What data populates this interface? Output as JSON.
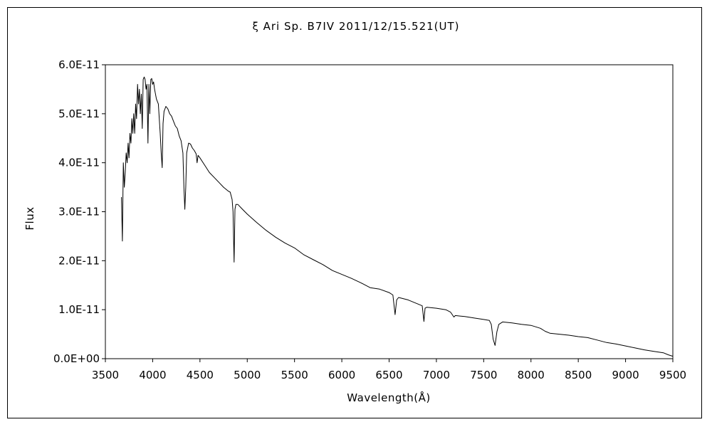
{
  "chart_data": {
    "type": "line",
    "title": "ξ  Ari    Sp. B7IV    2011/12/15.521(UT)",
    "xlabel": "Wavelength(Å)",
    "ylabel": "Flux",
    "xlim": [
      3500,
      9500
    ],
    "ylim": [
      0,
      6e-11
    ],
    "x_ticks": [
      "3500",
      "4000",
      "4500",
      "5000",
      "5500",
      "6000",
      "6500",
      "7000",
      "7500",
      "8000",
      "8500",
      "9000",
      "9500"
    ],
    "y_ticks": [
      "0.0E+00",
      "1.0E-11",
      "2.0E-11",
      "3.0E-11",
      "4.0E-11",
      "5.0E-11",
      "6.0E-11"
    ],
    "grid": false,
    "legend": "none",
    "colors": {
      "line": "#000000",
      "axes": "#000000",
      "background": "#ffffff"
    },
    "series": [
      {
        "x": [
          3670,
          3680,
          3690,
          3700,
          3710,
          3720,
          3730,
          3740,
          3750,
          3760,
          3770,
          3780,
          3790,
          3800,
          3810,
          3820,
          3830,
          3840,
          3850,
          3860,
          3870,
          3880,
          3890,
          3900,
          3910,
          3920,
          3930,
          3940,
          3950,
          3960,
          3970,
          3980,
          3990,
          4000,
          4010,
          4020,
          4030,
          4040,
          4060,
          4080,
          4090,
          4101,
          4110,
          4120,
          4140,
          4160,
          4180,
          4200,
          4220,
          4240,
          4260,
          4280,
          4300,
          4320,
          4330,
          4340,
          4350,
          4360,
          4380,
          4400,
          4420,
          4440,
          4460,
          4470,
          4480,
          4500,
          4550,
          4600,
          4650,
          4700,
          4750,
          4800,
          4820,
          4840,
          4850,
          4855,
          4861,
          4866,
          4870,
          4880,
          4900,
          4950,
          5000,
          5100,
          5200,
          5300,
          5400,
          5500,
          5600,
          5700,
          5800,
          5900,
          6000,
          6100,
          6200,
          6300,
          6400,
          6500,
          6540,
          6563,
          6580,
          6600,
          6700,
          6800,
          6850,
          6868,
          6880,
          6900,
          7000,
          7100,
          7150,
          7185,
          7200,
          7250,
          7300,
          7400,
          7500,
          7560,
          7580,
          7600,
          7620,
          7640,
          7660,
          7700,
          7800,
          7900,
          8000,
          8100,
          8150,
          8200,
          8300,
          8400,
          8500,
          8600,
          8700,
          8800,
          8900,
          9000,
          9100,
          9200,
          9300,
          9400,
          9450,
          9500
        ],
        "y": [
          3.3e-11,
          2.4e-11,
          4e-11,
          3.5e-11,
          3.8e-11,
          4.2e-11,
          4e-11,
          4.4e-11,
          4.1e-11,
          4.6e-11,
          4.4e-11,
          4.9e-11,
          4.6e-11,
          5e-11,
          4.6e-11,
          5.2e-11,
          4.9e-11,
          5.6e-11,
          5.2e-11,
          5.5e-11,
          5e-11,
          5.4e-11,
          4.7e-11,
          5.7e-11,
          5.75e-11,
          5.7e-11,
          5.5e-11,
          5.6e-11,
          4.4e-11,
          5.6e-11,
          5e-11,
          5.7e-11,
          5.72e-11,
          5.6e-11,
          5.65e-11,
          5.5e-11,
          5.4e-11,
          5.3e-11,
          5.2e-11,
          4.6e-11,
          4.2e-11,
          3.9e-11,
          4.8e-11,
          5.05e-11,
          5.15e-11,
          5.1e-11,
          5e-11,
          4.95e-11,
          4.85e-11,
          4.75e-11,
          4.7e-11,
          4.55e-11,
          4.45e-11,
          4.2e-11,
          3.5e-11,
          3.05e-11,
          3.5e-11,
          4.2e-11,
          4.4e-11,
          4.38e-11,
          4.3e-11,
          4.25e-11,
          4.18e-11,
          4e-11,
          4.15e-11,
          4.1e-11,
          3.95e-11,
          3.8e-11,
          3.7e-11,
          3.6e-11,
          3.5e-11,
          3.42e-11,
          3.4e-11,
          3.25e-11,
          3e-11,
          2.5e-11,
          1.97e-11,
          2.6e-11,
          3.05e-11,
          3.15e-11,
          3.15e-11,
          3.05e-11,
          2.95e-11,
          2.78e-11,
          2.62e-11,
          2.48e-11,
          2.36e-11,
          2.26e-11,
          2.12e-11,
          2.02e-11,
          1.92e-11,
          1.8e-11,
          1.72e-11,
          1.64e-11,
          1.55e-11,
          1.45e-11,
          1.42e-11,
          1.35e-11,
          1.3e-11,
          9e-12,
          1.2e-11,
          1.25e-11,
          1.2e-11,
          1.12e-11,
          1.08e-11,
          7.6e-12,
          1.03e-11,
          1.05e-11,
          1.03e-11,
          1e-11,
          9.5e-12,
          8.5e-12,
          8.8e-12,
          8.7e-12,
          8.6e-12,
          8.3e-12,
          8e-12,
          7.8e-12,
          7e-12,
          4e-12,
          2.7e-12,
          5.5e-12,
          7e-12,
          7.5e-12,
          7.3e-12,
          7e-12,
          6.8e-12,
          6.2e-12,
          5.6e-12,
          5.2e-12,
          5e-12,
          4.8e-12,
          4.5e-12,
          4.3e-12,
          3.8e-12,
          3.3e-12,
          3e-12,
          2.6e-12,
          2.2e-12,
          1.8e-12,
          1.5e-12,
          1.2e-12,
          8e-13,
          5e-13
        ]
      }
    ]
  }
}
